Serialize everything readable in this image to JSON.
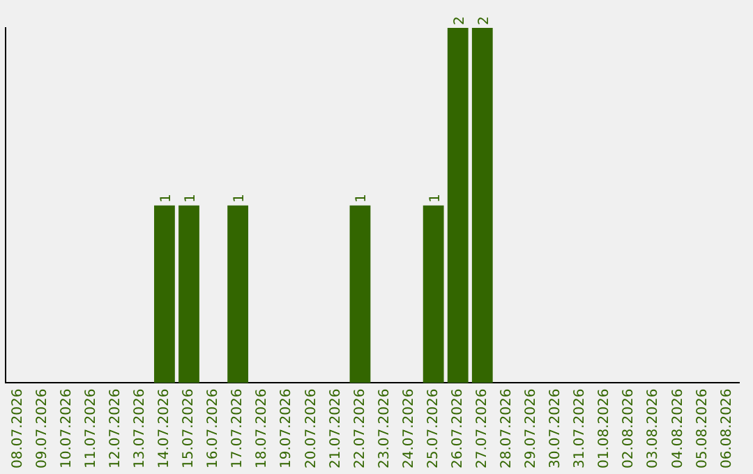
{
  "chart_data": {
    "type": "bar",
    "categories": [
      "08.07.2026",
      "09.07.2026",
      "10.07.2026",
      "11.07.2026",
      "12.07.2026",
      "13.07.2026",
      "14.07.2026",
      "15.07.2026",
      "16.07.2026",
      "17.07.2026",
      "18.07.2026",
      "19.07.2026",
      "20.07.2026",
      "21.07.2026",
      "22.07.2026",
      "23.07.2026",
      "24.07.2026",
      "25.07.2026",
      "26.07.2026",
      "27.07.2026",
      "28.07.2026",
      "29.07.2026",
      "30.07.2026",
      "31.07.2026",
      "01.08.2026",
      "02.08.2026",
      "03.08.2026",
      "04.08.2026",
      "05.08.2026",
      "06.08.2026"
    ],
    "values": [
      0,
      0,
      0,
      0,
      0,
      0,
      1,
      1,
      0,
      1,
      0,
      0,
      0,
      0,
      1,
      0,
      0,
      1,
      2,
      2,
      0,
      0,
      0,
      0,
      0,
      0,
      0,
      0,
      0,
      0
    ],
    "value_labels": [
      null,
      null,
      null,
      null,
      null,
      null,
      "1",
      "1",
      null,
      "1",
      null,
      null,
      null,
      null,
      "1",
      null,
      null,
      "1",
      "2",
      "2",
      null,
      null,
      null,
      null,
      null,
      null,
      null,
      null,
      null,
      null
    ],
    "color": "#336600",
    "tick_labels": "x",
    "grid": false,
    "legend": false
  }
}
